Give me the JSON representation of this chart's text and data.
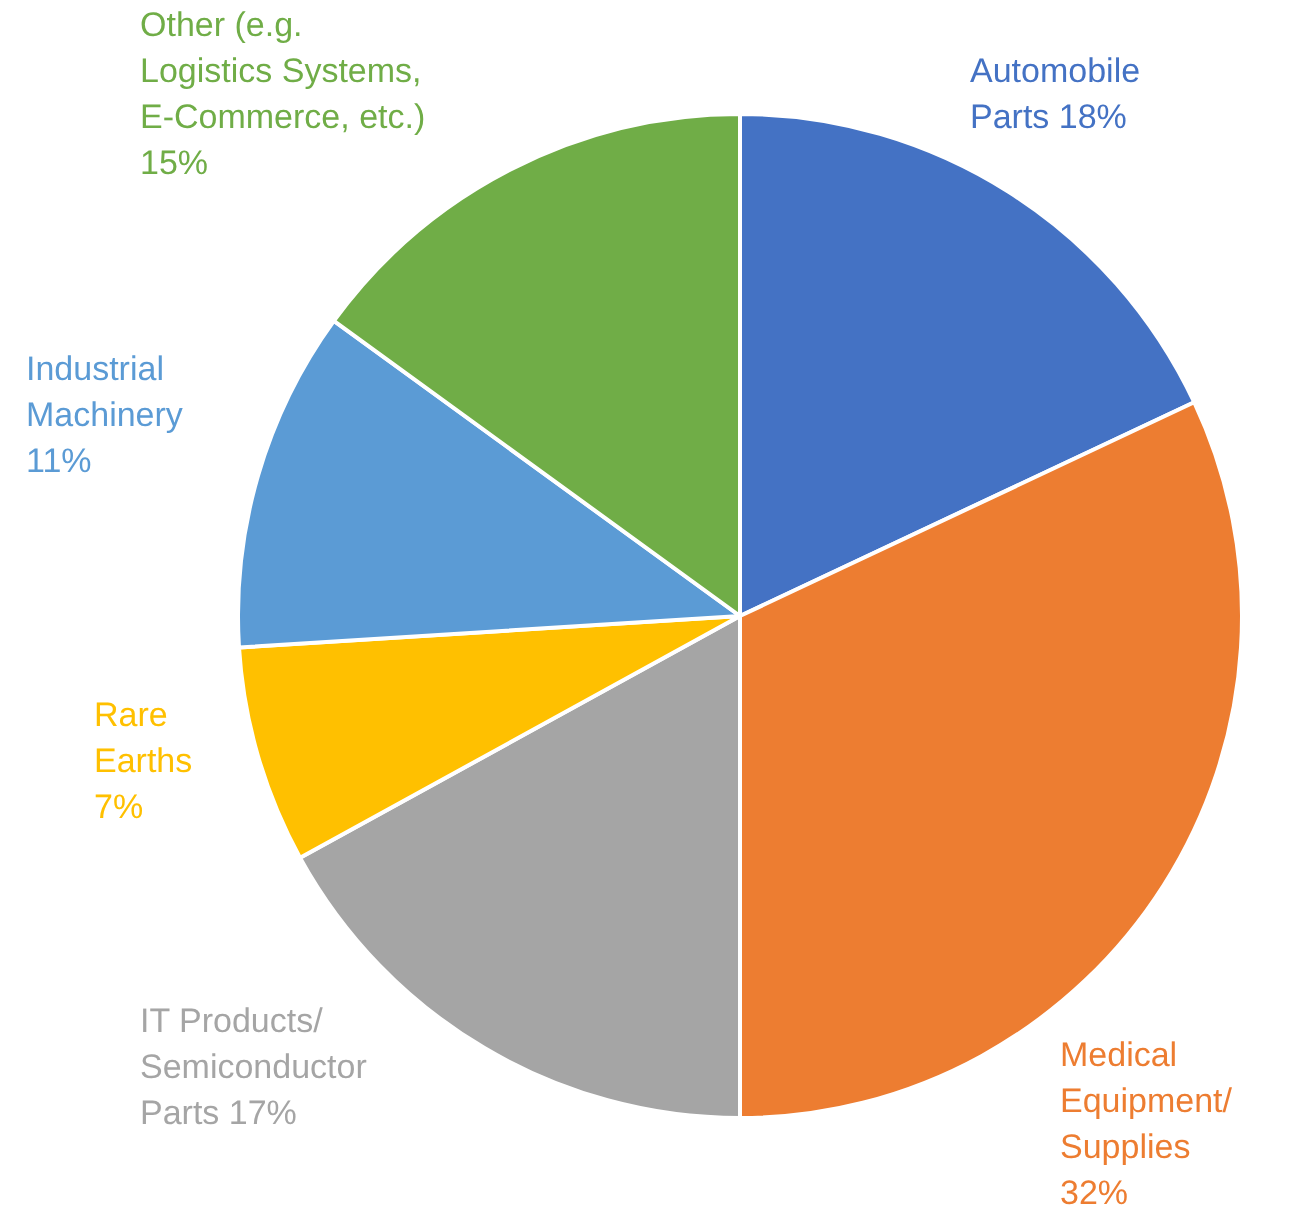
{
  "chart_data": {
    "type": "pie",
    "categories": [
      "Automobile Parts",
      "Medical Equipment/ Supplies",
      "IT Products/ Semiconductor Parts",
      "Rare Earths",
      "Industrial Machinery",
      "Other (e.g. Logistics Systems, E-Commerce, etc.)"
    ],
    "values": [
      18,
      32,
      17,
      7,
      11,
      15
    ],
    "value_labels": [
      "18%",
      "32%",
      "17%",
      "7%",
      "11%",
      "15%"
    ],
    "colors": [
      "#4472c4",
      "#ed7d31",
      "#a5a5a5",
      "#ffc000",
      "#5b9bd5",
      "#70ad47"
    ],
    "legend": false
  }
}
